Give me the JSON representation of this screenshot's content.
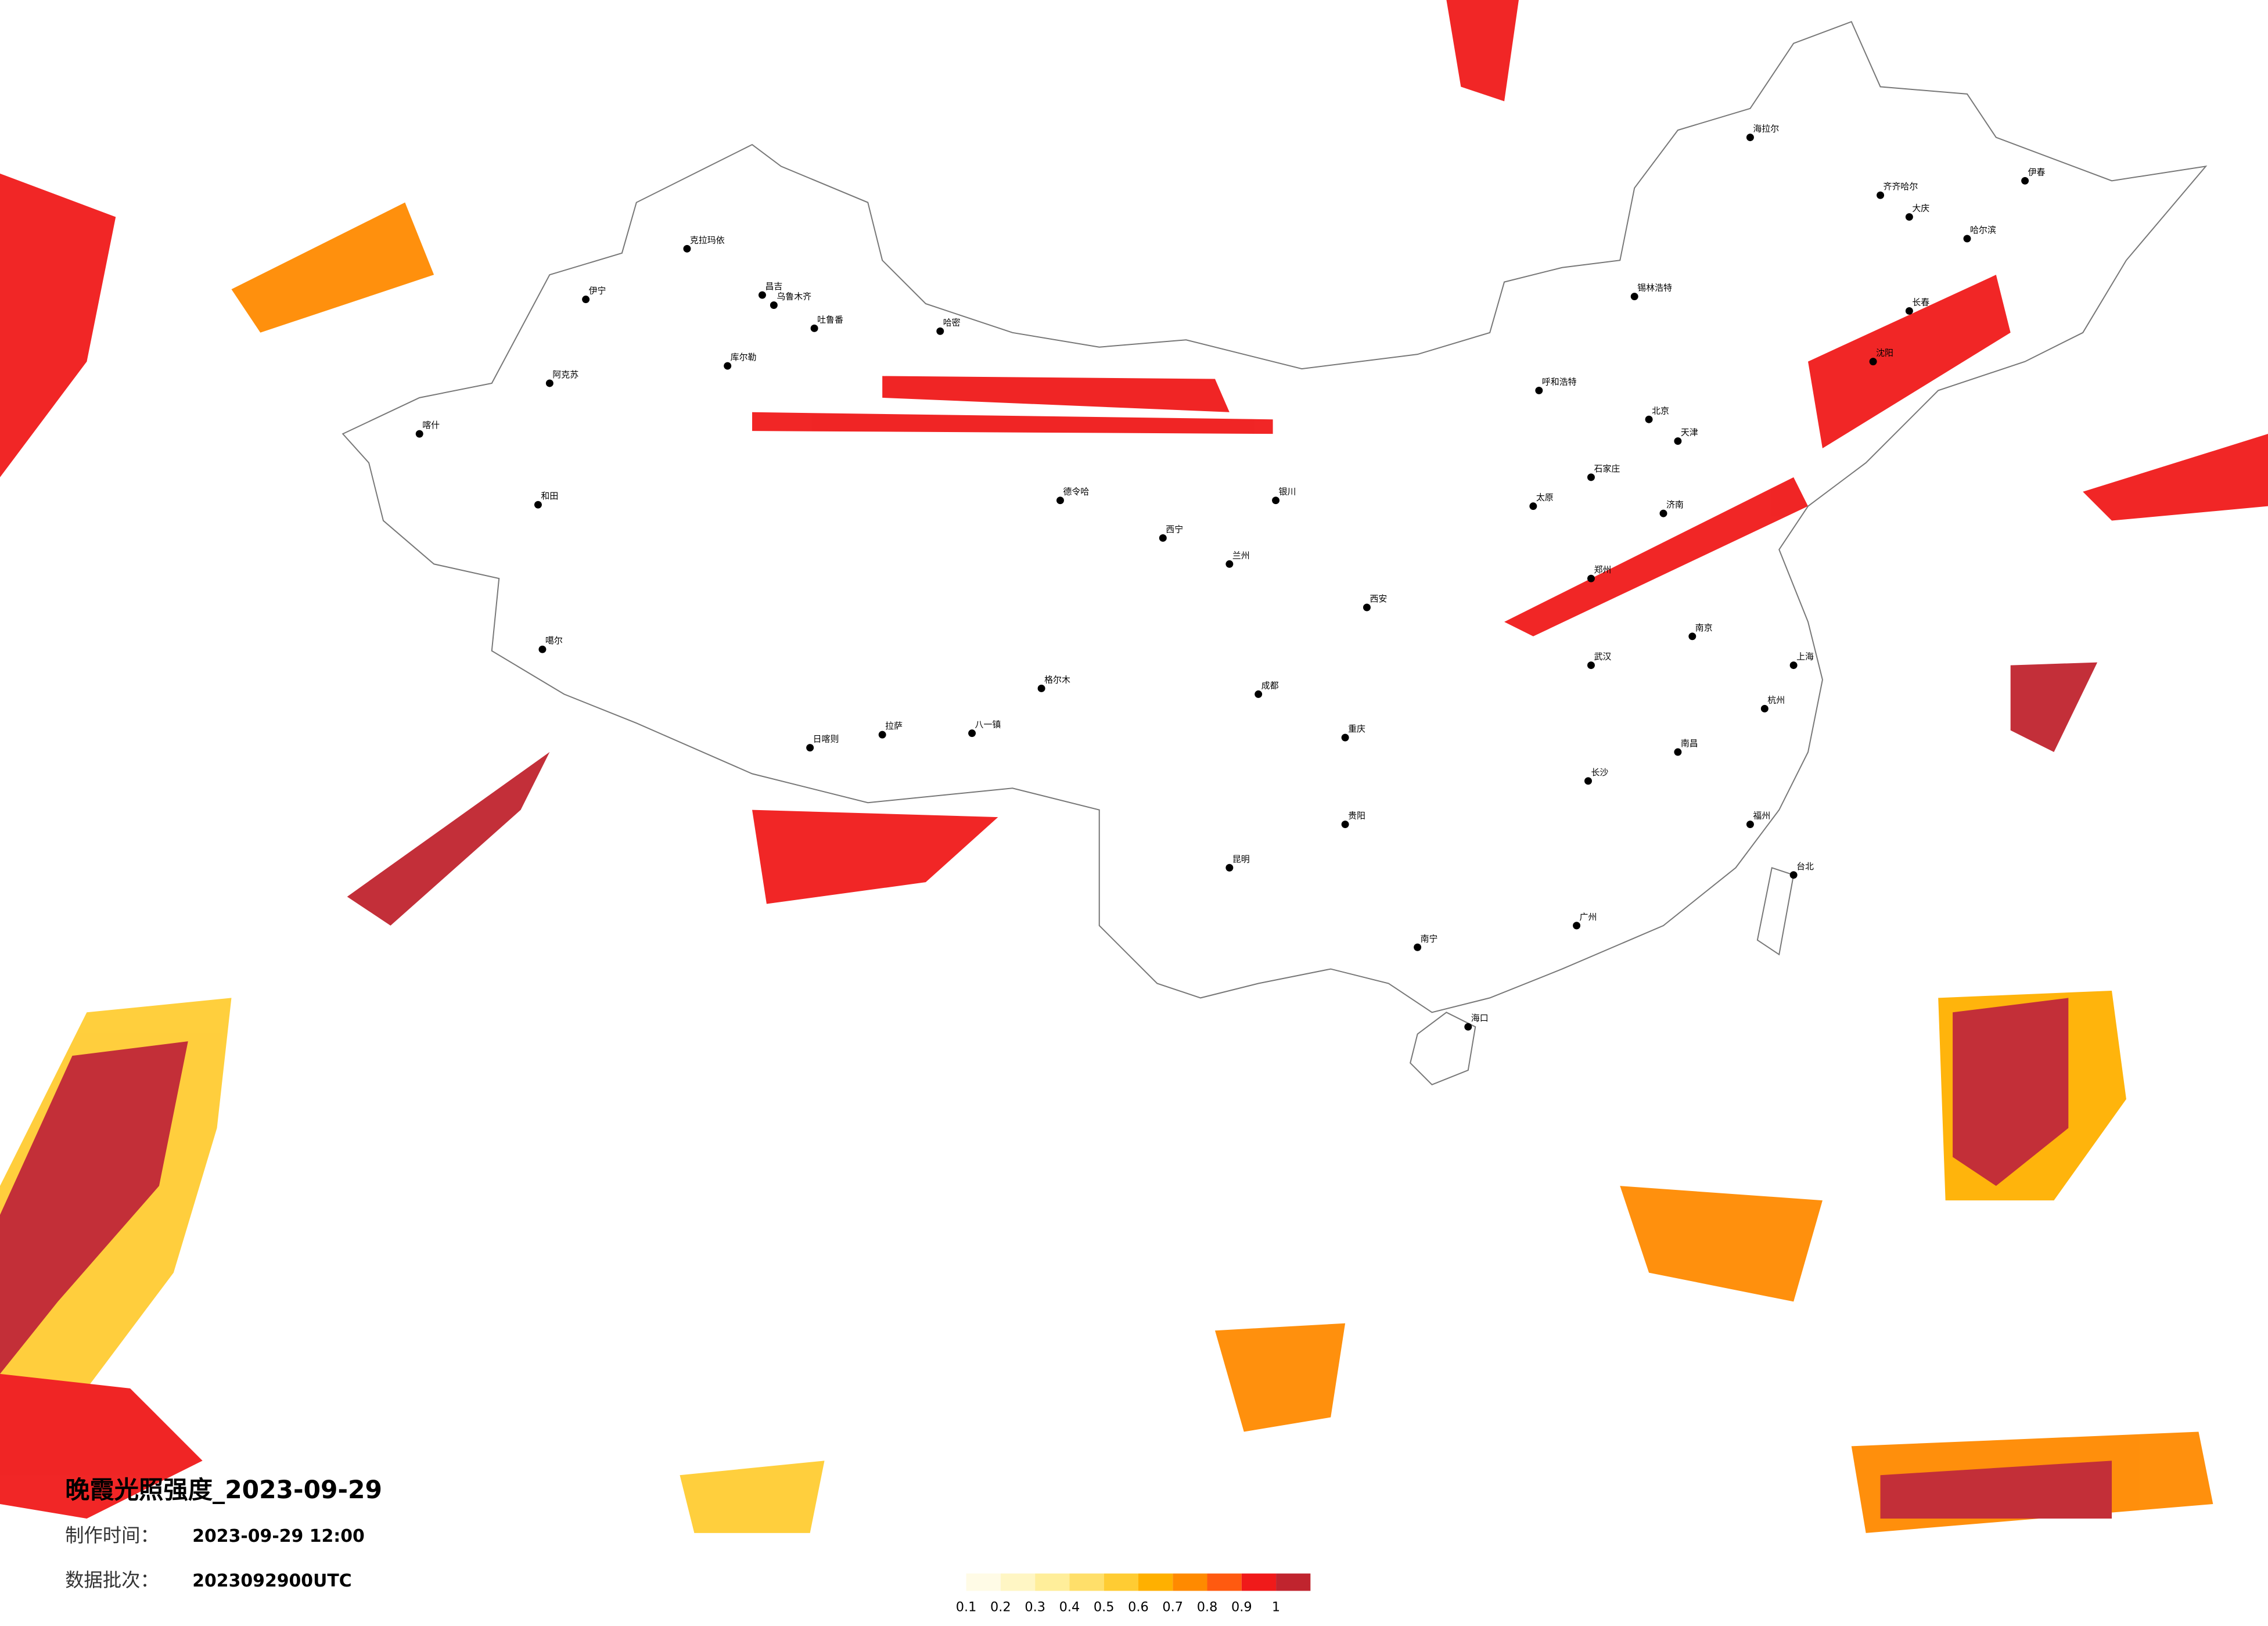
{
  "title": "晚霞光照强度_2023-09-29",
  "made_label": "制作时间：",
  "made_value": "2023-09-29 12:00",
  "batch_label": "数据批次：",
  "batch_value": "2023092900UTC",
  "legend": {
    "items": [
      {
        "label": "0.1",
        "color": "#fffbe6"
      },
      {
        "label": "0.2",
        "color": "#fff6c4"
      },
      {
        "label": "0.3",
        "color": "#ffee9a"
      },
      {
        "label": "0.4",
        "color": "#ffdf6a"
      },
      {
        "label": "0.5",
        "color": "#ffcc33"
      },
      {
        "label": "0.6",
        "color": "#ffb000"
      },
      {
        "label": "0.7",
        "color": "#ff8a00"
      },
      {
        "label": "0.8",
        "color": "#ff5a10"
      },
      {
        "label": "0.9",
        "color": "#f01a1a"
      },
      {
        "label": "1",
        "color": "#c0242e"
      }
    ]
  },
  "cities": [
    "克拉玛依",
    "伊宁",
    "昌吉",
    "乌鲁木齐",
    "吐鲁番",
    "哈密",
    "库尔勒",
    "阿克苏",
    "喀什",
    "和田",
    "噶尔",
    "日喀则",
    "拉萨",
    "八一镇",
    "格尔木",
    "德令哈",
    "西宁",
    "兰州",
    "银川",
    "呼和浩特",
    "北京",
    "天津",
    "石家庄",
    "太原",
    "济南",
    "郑州",
    "西安",
    "武汉",
    "长沙",
    "南昌",
    "杭州",
    "上海",
    "南京",
    "福州",
    "广州",
    "南宁",
    "海口",
    "昆明",
    "贵阳",
    "成都",
    "重庆",
    "哈尔滨",
    "长春",
    "沈阳",
    "大庆",
    "齐齐哈尔",
    "台北",
    "锡林浩特",
    "海拉尔",
    "伊春"
  ]
}
